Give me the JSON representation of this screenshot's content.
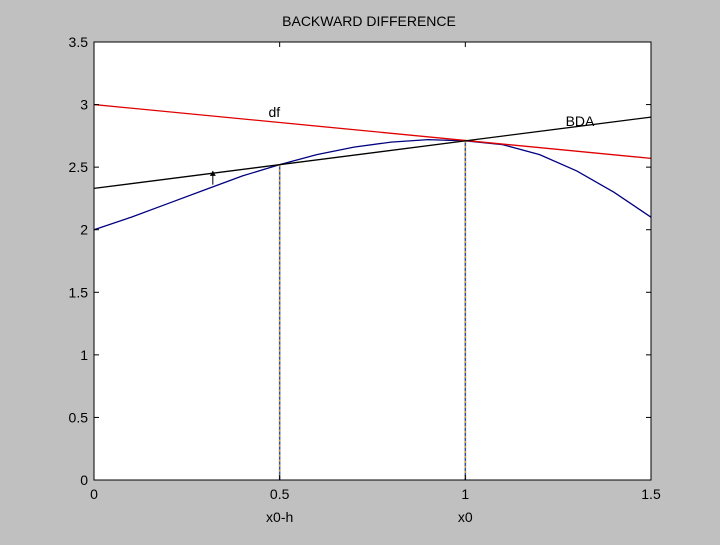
{
  "chart_data": {
    "type": "line",
    "title": "BACKWARD DIFFERENCE",
    "xlabel": "",
    "ylabel": "",
    "xlim": [
      0,
      1.5
    ],
    "ylim": [
      0,
      3.5
    ],
    "xticks": [
      0,
      0.5,
      1,
      1.5
    ],
    "xtick_labels": [
      "0",
      "0.5",
      "1",
      "1.5"
    ],
    "yticks": [
      0,
      0.5,
      1,
      1.5,
      2,
      2.5,
      3,
      3.5
    ],
    "ytick_labels": [
      "0",
      "0.5",
      "1",
      "1.5",
      "2",
      "2.5",
      "3",
      "3.5"
    ],
    "grid": false,
    "series": [
      {
        "color": "#000080",
        "x": [
          0,
          0.1,
          0.2,
          0.3,
          0.4,
          0.5,
          0.6,
          0.7,
          0.8,
          0.9,
          1.0,
          1.1,
          1.2,
          1.3,
          1.4,
          1.5
        ],
        "y": [
          2.0,
          2.1,
          2.21,
          2.32,
          2.43,
          2.52,
          2.6,
          2.66,
          2.7,
          2.72,
          2.71,
          2.68,
          2.6,
          2.47,
          2.3,
          2.1
        ]
      },
      {
        "color": "#e00000",
        "x": [
          0,
          1.5
        ],
        "y": [
          3.0,
          2.57
        ]
      },
      {
        "color": "#000000",
        "x": [
          0,
          1.5
        ],
        "y": [
          2.33,
          2.9
        ]
      }
    ],
    "vlines": [
      {
        "x": 0.5,
        "y": 2.52,
        "label": "x0-h"
      },
      {
        "x": 1.0,
        "y": 2.71,
        "label": "x0"
      }
    ],
    "annotations": [
      {
        "text": "df",
        "x": 0.47,
        "y": 2.9
      },
      {
        "text": "BDA",
        "x": 1.27,
        "y": 2.83
      }
    ],
    "arrow": {
      "x": 0.32,
      "y_from": 2.36,
      "y_to": 2.47
    }
  }
}
